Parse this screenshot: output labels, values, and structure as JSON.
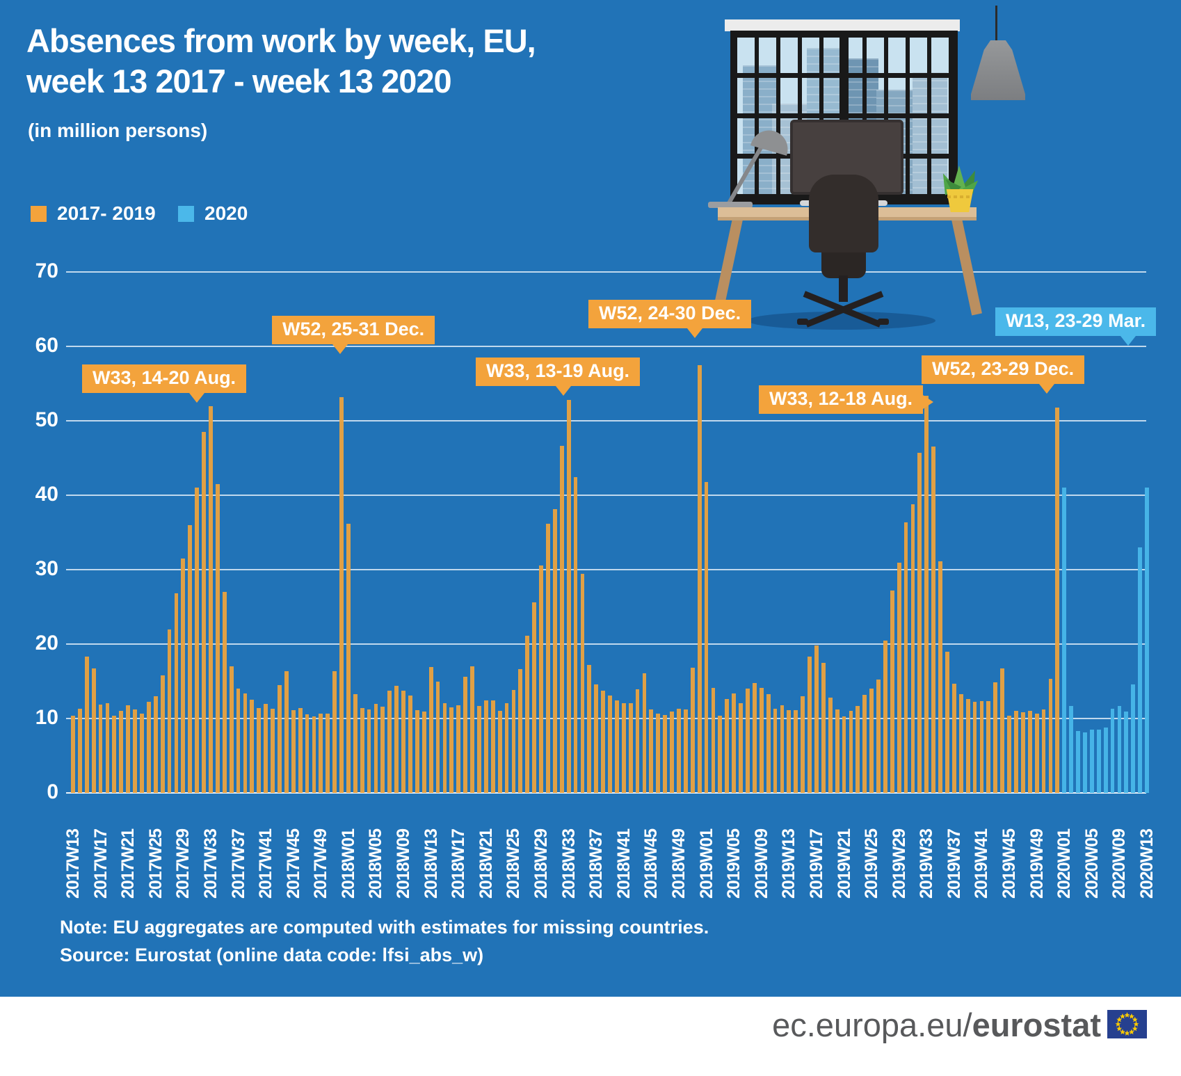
{
  "header": {
    "title_line1": "Absences from work by week, EU,",
    "title_line2": "week 13 2017 - week 13 2020",
    "subtitle": "(in million persons)"
  },
  "legend": {
    "items": [
      {
        "label": "2017- 2019",
        "color": "#F3A33C"
      },
      {
        "label": "2020",
        "color": "#4BB8EA"
      }
    ]
  },
  "chart_data": {
    "type": "bar",
    "title": "Absences from work by week, EU, week 13 2017 - week 13 2020",
    "unit": "million persons",
    "ylim": [
      0,
      70
    ],
    "yticks": [
      0,
      10,
      20,
      30,
      40,
      50,
      60,
      70
    ],
    "grid": "horizontal",
    "x_start": "2017W13",
    "x_end": "2020W13",
    "x_tick_labels": [
      "2017W13",
      "2017W17",
      "2017W21",
      "2017W25",
      "2017W29",
      "2017W33",
      "2017W37",
      "2017W41",
      "2017W45",
      "2017W49",
      "2018W01",
      "2018W05",
      "2018W09",
      "2018W13",
      "2018W17",
      "2018W21",
      "2018W25",
      "2018W29",
      "2018W33",
      "2018W37",
      "2018W41",
      "2018W45",
      "2018W49",
      "2019W01",
      "2019W05",
      "2019W09",
      "2019W13",
      "2019W17",
      "2019W21",
      "2019W25",
      "2019W29",
      "2019W33",
      "2019W37",
      "2019W41",
      "2019W45",
      "2019W49",
      "2020W01",
      "2020W05",
      "2020W09",
      "2020W13"
    ],
    "series": [
      {
        "name": "2017- 2019",
        "color": "#EBA23E",
        "years": {
          "2017": {
            "first_week": 13,
            "values": [
              10.4,
              11.3,
              18.3,
              16.7,
              11.9,
              12.1,
              10.4,
              11.0,
              11.8,
              11.2,
              10.7,
              12.2,
              13.0,
              15.8,
              22.0,
              26.8,
              31.5,
              36.0,
              41.0,
              48.5,
              52.0,
              41.5,
              27.0,
              17.0,
              14.0,
              13.4,
              12.5,
              11.4,
              12.0,
              11.3,
              14.5,
              16.4,
              11.1,
              11.4,
              10.6,
              10.3,
              10.7,
              10.7,
              16.4,
              53.2
            ]
          },
          "2018": {
            "first_week": 1,
            "values": [
              36.2,
              13.3,
              11.4,
              11.2,
              12.0,
              11.6,
              13.7,
              14.4,
              13.7,
              13.1,
              11.1,
              10.9,
              16.9,
              15.0,
              12.1,
              11.5,
              11.8,
              15.6,
              17.0,
              11.7,
              12.4,
              12.4,
              11.0,
              12.1,
              13.8,
              16.6,
              21.1,
              25.6,
              30.6,
              36.2,
              38.1,
              46.6,
              52.8,
              42.4,
              29.4,
              17.2,
              14.6,
              13.7,
              13.1,
              12.4,
              12.1,
              12.1,
              13.9,
              16.1,
              11.2,
              10.7,
              10.5,
              10.9,
              11.3,
              11.2,
              16.8,
              57.5
            ]
          },
          "2019": {
            "first_week": 1,
            "values": [
              41.8,
              14.1,
              10.4,
              12.6,
              13.4,
              12.1,
              14.0,
              14.8,
              14.1,
              13.3,
              11.3,
              11.8,
              11.1,
              11.1,
              13.0,
              18.3,
              19.8,
              17.5,
              12.8,
              11.2,
              10.3,
              11.0,
              11.7,
              13.2,
              14.0,
              15.2,
              20.5,
              27.2,
              30.9,
              36.4,
              38.8,
              45.7,
              53.4,
              46.5,
              31.1,
              19.0,
              14.7,
              13.3,
              12.6,
              12.2,
              12.3,
              12.3,
              14.9,
              16.7,
              10.4,
              11.0,
              10.8,
              11.0,
              10.7,
              11.2,
              15.3,
              51.8
            ]
          }
        }
      },
      {
        "name": "2020",
        "color": "#49B7E9",
        "years": {
          "2020": {
            "first_week": 1,
            "values": [
              41.0,
              11.7,
              8.3,
              8.1,
              8.5,
              8.5,
              8.8,
              11.3,
              11.7,
              10.9,
              14.6,
              33.0,
              41.0
            ]
          }
        }
      }
    ],
    "callouts": [
      {
        "text": "W33, 14-20 Aug.",
        "week": "2017W33",
        "style": "orange"
      },
      {
        "text": "W52, 25-31 Dec.",
        "week": "2017W52",
        "style": "orange"
      },
      {
        "text": "W33, 13-19 Aug.",
        "week": "2018W33",
        "style": "orange"
      },
      {
        "text": "W52, 24-30 Dec.",
        "week": "2018W52",
        "style": "orange"
      },
      {
        "text": "W33, 12-18 Aug.",
        "week": "2019W33",
        "style": "orange"
      },
      {
        "text": "W52, 23-29 Dec.",
        "week": "2019W52",
        "style": "orange"
      },
      {
        "text": "W13, 23-29 Mar.",
        "week": "2020W13",
        "style": "blue"
      }
    ]
  },
  "notes": {
    "note": "Note: EU aggregates are computed with estimates for missing countries.",
    "source": "Source: Eurostat (online data code: lfsi_abs_w)"
  },
  "footer": {
    "url_prefix": "ec.europa.eu/",
    "url_bold": "eurostat"
  },
  "colors": {
    "background": "#2173B7",
    "bar_2017_2019": "#EBA23E",
    "bar_2020": "#49B7E9",
    "callout_orange": "#F3A33C",
    "callout_blue": "#4BB8EA",
    "gridline": "#E9F3FA",
    "footer_text": "#58595B",
    "eu_flag_blue": "#26408F",
    "eu_flag_stars": "#FFCC00"
  }
}
